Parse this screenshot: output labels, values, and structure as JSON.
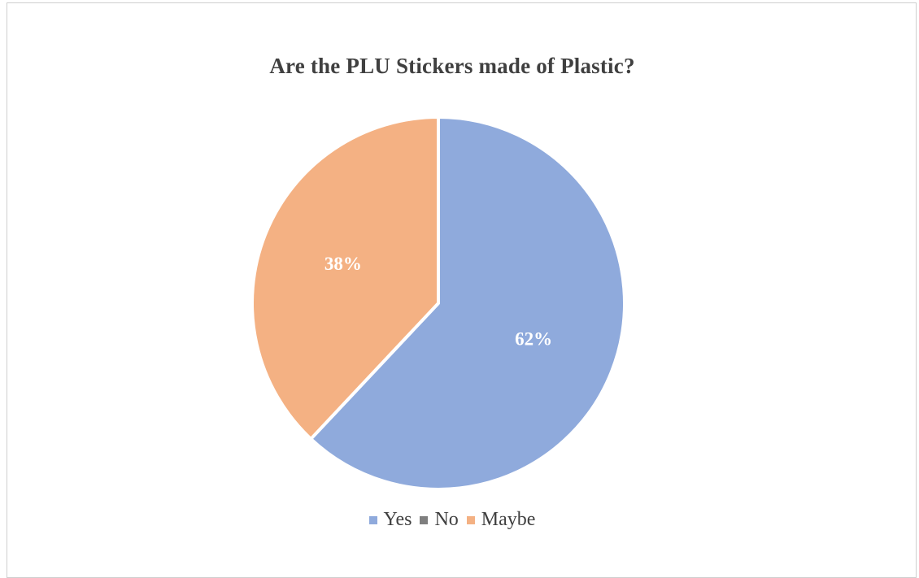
{
  "chart_data": {
    "type": "pie",
    "title": "Are the PLU Stickers made of Plastic?",
    "categories": [
      "Yes",
      "No",
      "Maybe"
    ],
    "values": [
      62,
      0,
      38
    ],
    "labels": [
      "62%",
      "",
      "38%"
    ],
    "colors": [
      "#8faadc",
      "#7f7f7f",
      "#f4b183"
    ],
    "legend_position": "bottom"
  }
}
